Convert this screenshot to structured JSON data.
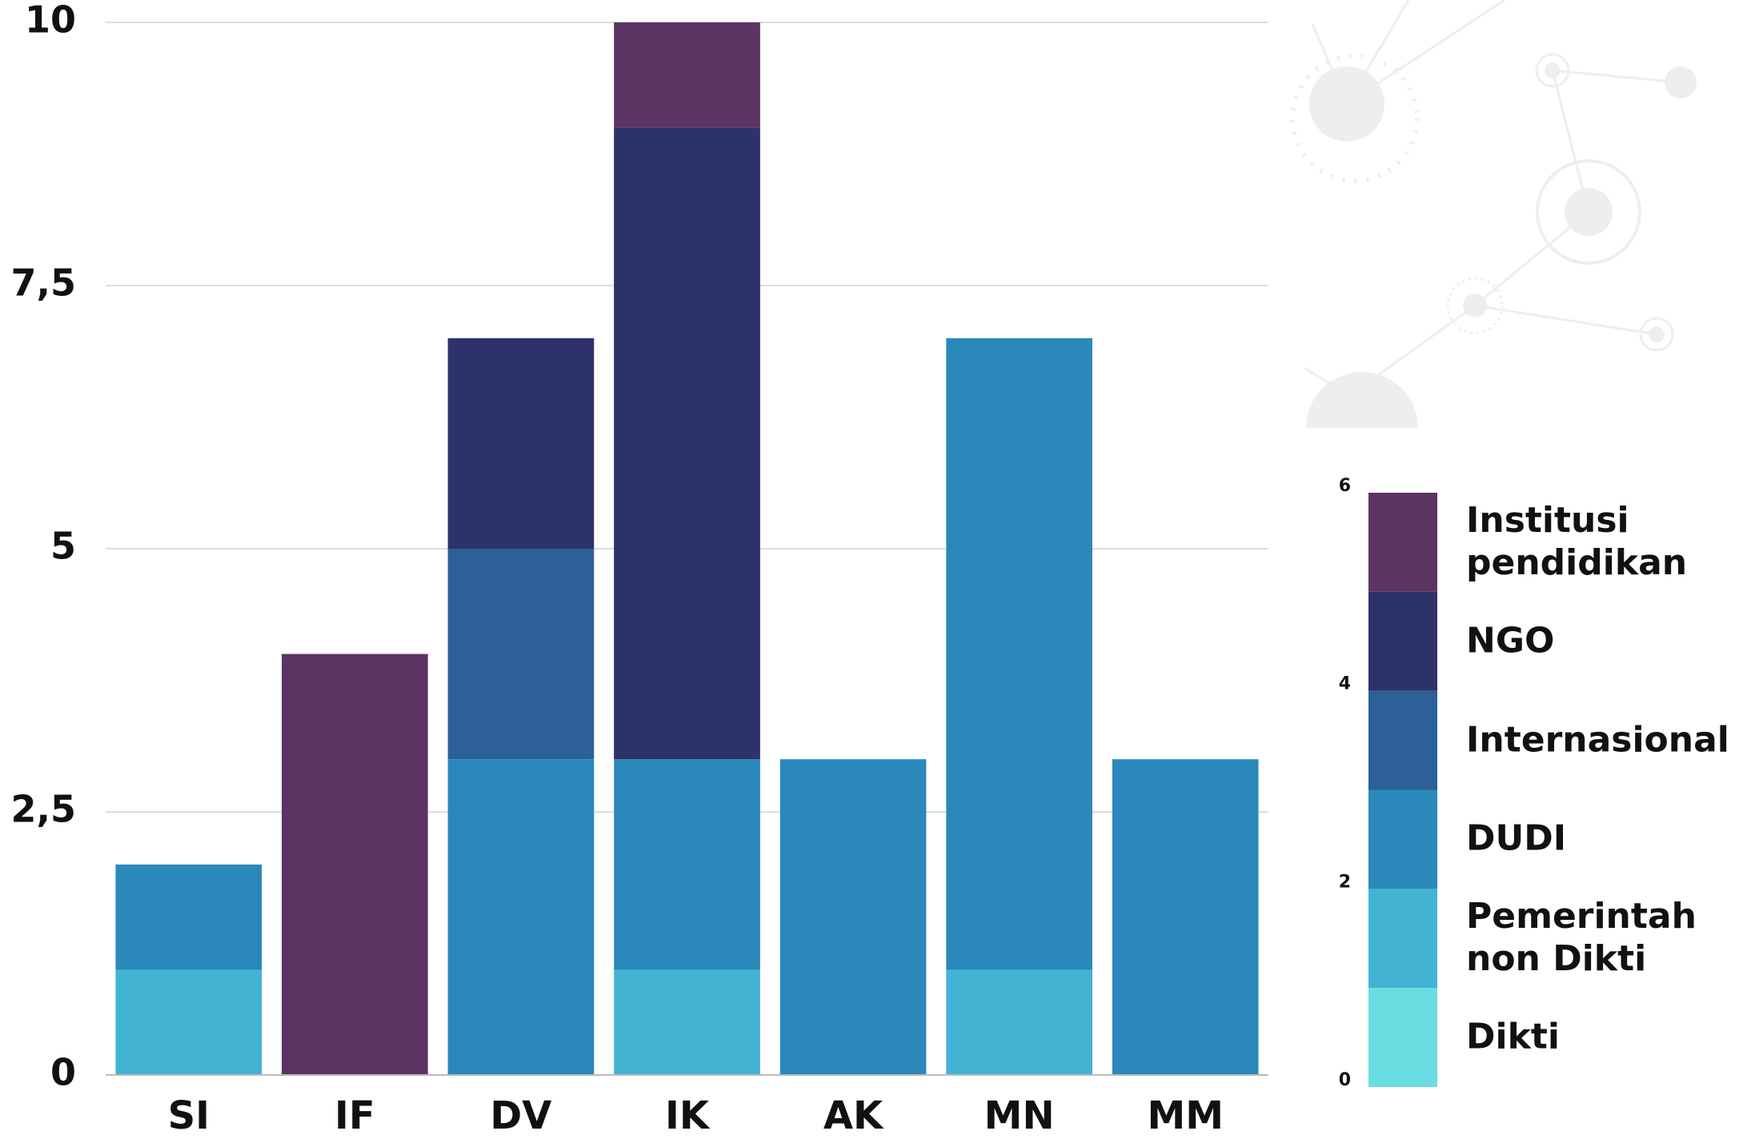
{
  "chart_data": {
    "type": "stacked_bar",
    "categories": [
      "SI",
      "IF",
      "DV",
      "IK",
      "AK",
      "MN",
      "MM"
    ],
    "series": [
      {
        "name": "Dikti",
        "color": "#6adde3",
        "values": [
          0,
          0,
          0,
          0,
          0,
          0,
          0
        ]
      },
      {
        "name": "Pemerintah non Dikti",
        "color": "#42b3d3",
        "values": [
          1,
          0,
          0,
          1,
          0,
          1,
          0
        ]
      },
      {
        "name": "DUDI",
        "color": "#2a89ba",
        "values": [
          1,
          0,
          3,
          2,
          3,
          6,
          3
        ]
      },
      {
        "name": "Internasional",
        "color": "#2c6097",
        "values": [
          0,
          0,
          2,
          0,
          0,
          0,
          0
        ]
      },
      {
        "name": "NGO",
        "color": "#2e326b",
        "values": [
          0,
          0,
          2,
          6,
          0,
          0,
          0
        ]
      },
      {
        "name": "Institusi pendidikan",
        "color": "#5c3463",
        "values": [
          0,
          4,
          0,
          1,
          0,
          0,
          0
        ]
      }
    ],
    "ylim": [
      0,
      10
    ],
    "yticks": [
      0,
      {
        "value": 2.5,
        "label": "2,5"
      },
      5,
      {
        "value": 7.5,
        "label": "7,5"
      },
      10
    ],
    "grid": true,
    "legend_scale": {
      "lim": [
        0,
        6
      ],
      "ticks": [
        0,
        2,
        4,
        6
      ]
    }
  }
}
